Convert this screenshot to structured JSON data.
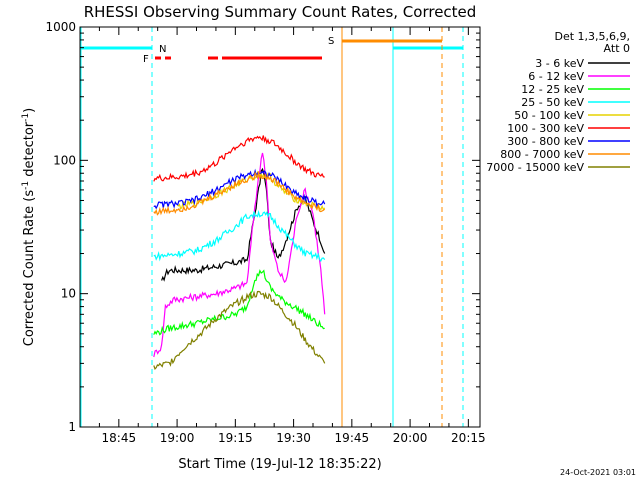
{
  "chart_data": {
    "type": "line",
    "title": "RHESSI Observing Summary Count Rates, Corrected",
    "xlabel": "Start Time (19-Jul-12 18:35:22)",
    "ylabel": "Corrected Count Rate (s⁻¹ detector⁻¹)",
    "ylabel_main": "Corrected Count Rate (s",
    "ylabel_sup1": "-1",
    "ylabel_mid": " detector",
    "ylabel_sup2": "-1",
    "ylabel_end": ")",
    "y_scale": "log",
    "ylim": [
      1,
      1000
    ],
    "xlim": [
      "18:35",
      "20:18"
    ],
    "x_ticks": [
      "18:45",
      "19:00",
      "19:15",
      "19:30",
      "19:45",
      "20:00",
      "20:15"
    ],
    "y_ticks": [
      "1",
      "10",
      "100",
      "1000"
    ],
    "grid": false,
    "legend_position": "right",
    "legend_header": [
      "Det 1,3,5,6,9,",
      "Att 0"
    ],
    "timestamp": "24-Oct-2021 03:01",
    "series": [
      {
        "name": "3 - 6 keV",
        "color": "#000000",
        "points": [
          [
            "18:56",
            12
          ],
          [
            "18:57",
            14
          ],
          [
            "18:58",
            15
          ],
          [
            "19:05",
            15
          ],
          [
            "19:10",
            16
          ],
          [
            "19:15",
            17
          ],
          [
            "19:18",
            18
          ],
          [
            "19:20",
            40
          ],
          [
            "19:22",
            90
          ],
          [
            "19:23",
            60
          ],
          [
            "19:24",
            25
          ],
          [
            "19:26",
            18
          ],
          [
            "19:28",
            25
          ],
          [
            "19:31",
            45
          ],
          [
            "19:33",
            52
          ],
          [
            "19:35",
            35
          ],
          [
            "19:37",
            25
          ],
          [
            "19:38",
            20
          ]
        ]
      },
      {
        "name": "6 - 12 keV",
        "color": "#ff00ff",
        "points": [
          [
            "18:54",
            3.5
          ],
          [
            "18:56",
            4
          ],
          [
            "18:57",
            8
          ],
          [
            "18:59",
            9
          ],
          [
            "19:05",
            9.5
          ],
          [
            "19:10",
            10
          ],
          [
            "19:15",
            11
          ],
          [
            "19:18",
            12
          ],
          [
            "19:20",
            45
          ],
          [
            "19:22",
            120
          ],
          [
            "19:23",
            70
          ],
          [
            "19:24",
            25
          ],
          [
            "19:26",
            15
          ],
          [
            "19:28",
            12
          ],
          [
            "19:31",
            40
          ],
          [
            "19:33",
            60
          ],
          [
            "19:35",
            40
          ],
          [
            "19:37",
            15
          ],
          [
            "19:38",
            7
          ]
        ]
      },
      {
        "name": "12 - 25 keV",
        "color": "#00ff00",
        "points": [
          [
            "18:54",
            5
          ],
          [
            "18:58",
            5.5
          ],
          [
            "19:05",
            6
          ],
          [
            "19:10",
            6.5
          ],
          [
            "19:15",
            7
          ],
          [
            "19:18",
            8
          ],
          [
            "19:20",
            13
          ],
          [
            "19:22",
            15
          ],
          [
            "19:24",
            11
          ],
          [
            "19:27",
            9
          ],
          [
            "19:30",
            8
          ],
          [
            "19:33",
            7
          ],
          [
            "19:36",
            6
          ],
          [
            "19:38",
            5.5
          ]
        ]
      },
      {
        "name": "25 - 50 keV",
        "color": "#00ffff",
        "points": [
          [
            "18:54",
            19
          ],
          [
            "18:58",
            19.5
          ],
          [
            "19:05",
            21
          ],
          [
            "19:10",
            25
          ],
          [
            "19:15",
            32
          ],
          [
            "19:18",
            38
          ],
          [
            "19:21",
            40
          ],
          [
            "19:24",
            38
          ],
          [
            "19:27",
            30
          ],
          [
            "19:30",
            24
          ],
          [
            "19:33",
            20
          ],
          [
            "19:36",
            19
          ],
          [
            "19:38",
            18
          ]
        ]
      },
      {
        "name": "50 - 100 keV",
        "color": "#e6d200",
        "points": [
          [
            "19:00",
            45
          ],
          [
            "19:05",
            48
          ],
          [
            "19:10",
            55
          ],
          [
            "19:15",
            65
          ],
          [
            "19:18",
            72
          ],
          [
            "19:21",
            78
          ],
          [
            "19:24",
            75
          ],
          [
            "19:27",
            60
          ],
          [
            "19:30",
            52
          ],
          [
            "19:33",
            48
          ],
          [
            "19:36",
            45
          ],
          [
            "19:38",
            44
          ]
        ]
      },
      {
        "name": "100 - 300 keV",
        "color": "#ff0000",
        "points": [
          [
            "18:54",
            73
          ],
          [
            "18:58",
            74
          ],
          [
            "19:02",
            76
          ],
          [
            "19:06",
            82
          ],
          [
            "19:10",
            95
          ],
          [
            "19:14",
            120
          ],
          [
            "19:18",
            140
          ],
          [
            "19:21",
            150
          ],
          [
            "19:24",
            140
          ],
          [
            "19:27",
            120
          ],
          [
            "19:30",
            100
          ],
          [
            "19:33",
            85
          ],
          [
            "19:36",
            77
          ],
          [
            "19:38",
            75
          ]
        ]
      },
      {
        "name": "300 - 800 keV",
        "color": "#0000ff",
        "points": [
          [
            "18:54",
            46
          ],
          [
            "18:58",
            47
          ],
          [
            "19:02",
            48
          ],
          [
            "19:06",
            52
          ],
          [
            "19:10",
            60
          ],
          [
            "19:14",
            70
          ],
          [
            "19:18",
            78
          ],
          [
            "19:21",
            82
          ],
          [
            "19:24",
            78
          ],
          [
            "19:27",
            68
          ],
          [
            "19:30",
            58
          ],
          [
            "19:33",
            52
          ],
          [
            "19:36",
            48
          ],
          [
            "19:38",
            47
          ]
        ]
      },
      {
        "name": "800 - 7000 keV",
        "color": "#ff8c00",
        "points": [
          [
            "18:54",
            41
          ],
          [
            "18:58",
            42
          ],
          [
            "19:02",
            44
          ],
          [
            "19:06",
            48
          ],
          [
            "19:10",
            55
          ],
          [
            "19:14",
            64
          ],
          [
            "19:18",
            72
          ],
          [
            "19:21",
            78
          ],
          [
            "19:24",
            74
          ],
          [
            "19:27",
            64
          ],
          [
            "19:30",
            54
          ],
          [
            "19:33",
            48
          ],
          [
            "19:36",
            44
          ],
          [
            "19:38",
            43
          ]
        ]
      },
      {
        "name": "7000 - 15000 keV",
        "color": "#808000",
        "points": [
          [
            "18:54",
            2.8
          ],
          [
            "18:58",
            3
          ],
          [
            "19:02",
            4
          ],
          [
            "19:06",
            5
          ],
          [
            "19:10",
            6.5
          ],
          [
            "19:14",
            8
          ],
          [
            "19:18",
            9.5
          ],
          [
            "19:21",
            10
          ],
          [
            "19:24",
            9.5
          ],
          [
            "19:27",
            7.5
          ],
          [
            "19:30",
            6
          ],
          [
            "19:33",
            4.5
          ],
          [
            "19:36",
            3.5
          ],
          [
            "19:38",
            3
          ]
        ]
      }
    ],
    "flags": {
      "N_label": "N",
      "F_label": "F",
      "S_label": "S",
      "night_color": "#00ffff",
      "flare_color": "#ff0000",
      "saa_color": "#ff8c00"
    }
  }
}
